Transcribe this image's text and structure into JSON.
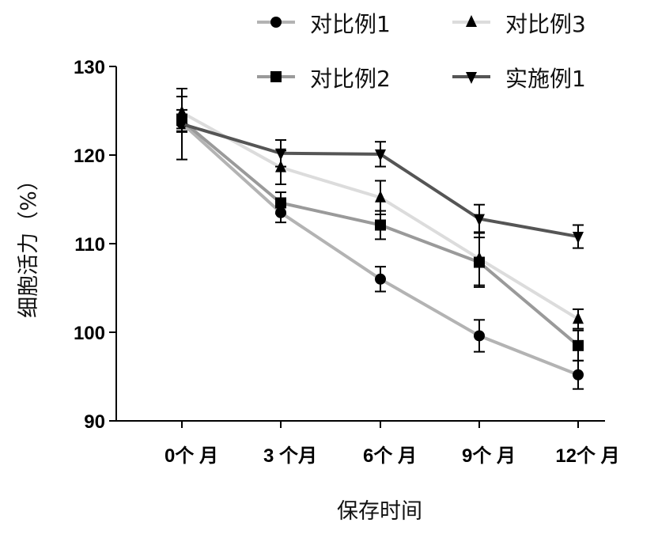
{
  "chart_data": {
    "type": "line",
    "title": "",
    "xlabel": "保存时间",
    "ylabel": "细胞活力（%）",
    "categories": [
      "0个 月",
      "3 个月",
      "6个 月",
      "9个 月",
      "12个 月"
    ],
    "ylim": [
      90,
      130
    ],
    "yticks": [
      90,
      100,
      110,
      120,
      130
    ],
    "grid": false,
    "legend_placement": "top",
    "series": [
      {
        "name": "对比例1",
        "marker": "circle",
        "color": "#b3b3b3",
        "values": [
          123.6,
          113.5,
          106.0,
          99.6,
          95.2
        ],
        "errors": [
          1.0,
          1.1,
          1.4,
          1.8,
          1.6
        ]
      },
      {
        "name": "对比例2",
        "marker": "square",
        "color": "#9a9a9a",
        "values": [
          123.9,
          114.6,
          112.1,
          107.9,
          98.5
        ],
        "errors": [
          1.2,
          1.2,
          1.6,
          2.8,
          1.7
        ]
      },
      {
        "name": "对比例3",
        "marker": "triangle-up",
        "color": "#dcdcdc",
        "values": [
          124.8,
          118.6,
          115.2,
          108.3,
          101.5
        ],
        "errors": [
          1.8,
          1.9,
          1.9,
          3.0,
          1.1
        ]
      },
      {
        "name": "实施例1",
        "marker": "triangle-down",
        "color": "#555555",
        "values": [
          123.5,
          120.2,
          120.1,
          112.8,
          110.8
        ],
        "errors": [
          4.0,
          1.5,
          1.4,
          1.6,
          1.3
        ]
      }
    ]
  }
}
